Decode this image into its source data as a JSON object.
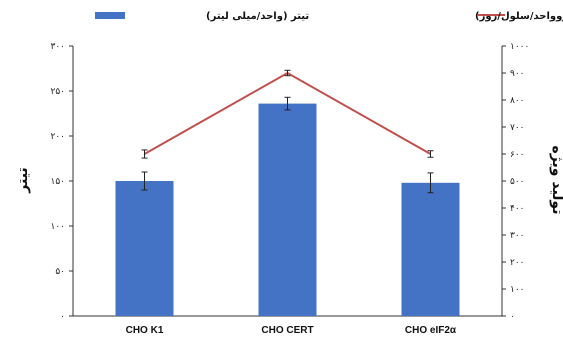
{
  "chart_data": {
    "type": "bar",
    "categories": [
      "CHO K1",
      "CHO CERT",
      "CHO eIF2α"
    ],
    "left_axis": {
      "title": "تیتر",
      "range": [
        0,
        300
      ],
      "ticks": [
        "۰",
        "۵۰",
        "۱۰۰",
        "۱۵۰",
        "۲۰۰",
        "۲۵۰",
        "۳۰۰"
      ],
      "tick_values": [
        0,
        50,
        100,
        150,
        200,
        250,
        300
      ]
    },
    "right_axis": {
      "title": "تولید ویژه",
      "range": [
        0,
        1000
      ],
      "ticks": [
        "۰",
        "۱۰۰",
        "۲۰۰",
        "۳۰۰",
        "۴۰۰",
        "۵۰۰",
        "۶۰۰",
        "۷۰۰",
        "۸۰۰",
        "۹۰۰",
        "۱۰۰۰"
      ],
      "tick_values": [
        0,
        100,
        200,
        300,
        400,
        500,
        600,
        700,
        800,
        900,
        1000
      ]
    },
    "series": [
      {
        "name": "تیتر (واحد/میلی لیتر)",
        "type": "bar",
        "axis": "left",
        "color": "#4472c4",
        "values": [
          150,
          236,
          148
        ],
        "errors": [
          10,
          7,
          11
        ]
      },
      {
        "name": "تولید ویژه (میکروواحد/سلول/روز)",
        "type": "line",
        "axis": "right",
        "color": "#c0504d",
        "values": [
          600,
          900,
          600
        ],
        "errors": [
          15,
          10,
          12
        ]
      }
    ],
    "grid": false,
    "legend": "top"
  }
}
